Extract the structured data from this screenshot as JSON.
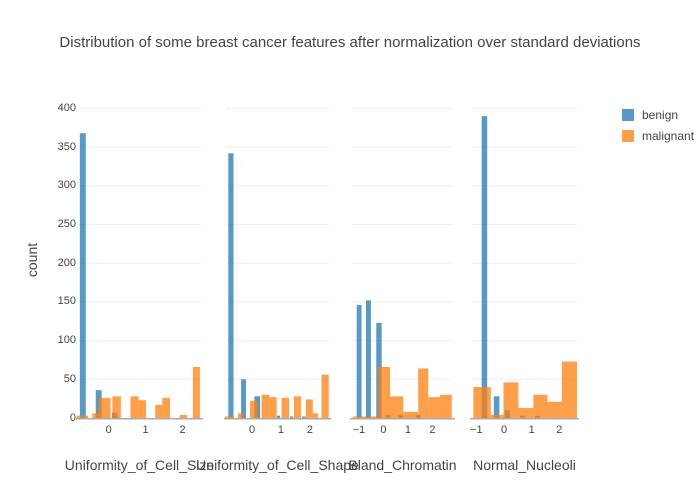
{
  "title": "Distribution of some breast cancer features after normalization over standard deviations",
  "chart_data": {
    "type": "bar",
    "subtype": "overlaid-histograms",
    "title": "Distribution of some breast cancer features after normalization over standard deviations",
    "ylabel": "count",
    "xlabel": "",
    "ylim": [
      0,
      400
    ],
    "y_ticks": [
      0,
      50,
      100,
      150,
      200,
      250,
      300,
      350,
      400
    ],
    "grid": true,
    "legend_position": "top-right",
    "bar_opacity": 0.75,
    "colors": {
      "benign": "#1f77b4",
      "malignant": "#ff7f0e",
      "gridline": "#eeeeee",
      "axis_line": "#aaaaaa",
      "text": "#444444"
    },
    "legend": [
      {
        "label": "benign",
        "color": "#1f77b4"
      },
      {
        "label": "malignant",
        "color": "#ff7f0e"
      }
    ],
    "series_note": "bars are [x_start, x_end, count] in standard-deviation units",
    "subplots": [
      {
        "feature": "Uniformity_of_Cell_Size",
        "xlim": [
          -0.83,
          2.5
        ],
        "x_ticks": [
          0,
          1,
          2
        ],
        "x_tick_labels": [
          "0",
          "1",
          "2"
        ],
        "series": {
          "benign": [
            [
              -0.78,
              -0.62,
              368
            ],
            [
              -0.35,
              -0.19,
              36
            ],
            [
              0.09,
              0.24,
              7
            ]
          ],
          "malignant": [
            [
              -0.87,
              -0.56,
              3
            ],
            [
              -0.44,
              -0.2,
              6
            ],
            [
              -0.27,
              0.05,
              26
            ],
            [
              0.1,
              0.33,
              28
            ],
            [
              0.59,
              0.81,
              28
            ],
            [
              0.81,
              1.01,
              23
            ],
            [
              1.26,
              1.45,
              17
            ],
            [
              1.45,
              1.66,
              26
            ],
            [
              1.92,
              2.12,
              4
            ],
            [
              2.28,
              2.47,
              66
            ]
          ]
        }
      },
      {
        "feature": "Uniformity_of_Cell_Shape",
        "xlim": [
          -0.9,
          2.66
        ],
        "x_ticks": [
          0,
          1,
          2
        ],
        "x_tick_labels": [
          "0",
          "1",
          "2"
        ],
        "series": {
          "benign": [
            [
              -0.82,
              -0.64,
              342
            ],
            [
              -0.38,
              -0.21,
              50
            ],
            [
              0.08,
              0.28,
              28
            ],
            [
              0.86,
              0.97,
              3
            ],
            [
              1.31,
              1.42,
              2
            ],
            [
              1.73,
              1.85,
              2
            ]
          ],
          "malignant": [
            [
              -0.93,
              -0.62,
              2
            ],
            [
              -0.49,
              -0.29,
              6
            ],
            [
              -0.07,
              0.2,
              22
            ],
            [
              0.33,
              0.6,
              30
            ],
            [
              0.6,
              0.85,
              27
            ],
            [
              1.02,
              1.28,
              26
            ],
            [
              1.45,
              1.69,
              28
            ],
            [
              1.86,
              2.1,
              24
            ],
            [
              2.1,
              2.28,
              6
            ],
            [
              2.4,
              2.65,
              56
            ]
          ]
        }
      },
      {
        "feature": "Bland_Chromatin",
        "xlim": [
          -1.28,
          2.84
        ],
        "x_ticks": [
          -1,
          0,
          1,
          2
        ],
        "x_tick_labels": [
          "−1",
          "0",
          "1",
          "2"
        ],
        "series": {
          "benign": [
            [
              -1.09,
              -0.89,
              146
            ],
            [
              -0.71,
              -0.51,
              152
            ],
            [
              -0.29,
              -0.07,
              123
            ],
            [
              0.09,
              0.28,
              4
            ],
            [
              0.61,
              0.81,
              4
            ],
            [
              1.32,
              1.51,
              4
            ]
          ],
          "malignant": [
            [
              -1.24,
              -0.22,
              2
            ],
            [
              -0.21,
              0.27,
              66
            ],
            [
              0.27,
              0.81,
              28
            ],
            [
              0.81,
              1.42,
              8
            ],
            [
              1.42,
              1.83,
              64
            ],
            [
              1.83,
              2.31,
              27
            ],
            [
              2.31,
              2.79,
              30
            ]
          ]
        }
      },
      {
        "feature": "Normal_Nucleoli",
        "xlim": [
          -1.16,
          2.64
        ],
        "x_ticks": [
          -1,
          0,
          1,
          2
        ],
        "x_tick_labels": [
          "−1",
          "0",
          "1",
          "2"
        ],
        "series": {
          "benign": [
            [
              -0.81,
              -0.61,
              390
            ],
            [
              -0.37,
              -0.17,
              28
            ],
            [
              0.02,
              0.22,
              10
            ],
            [
              0.58,
              0.76,
              3
            ],
            [
              1.12,
              1.3,
              3
            ]
          ],
          "malignant": [
            [
              -1.11,
              -0.48,
              40
            ],
            [
              -0.48,
              -0.02,
              4
            ],
            [
              -0.02,
              0.52,
              46
            ],
            [
              0.52,
              1.06,
              13
            ],
            [
              1.06,
              1.57,
              30
            ],
            [
              1.57,
              2.09,
              21
            ],
            [
              2.09,
              2.64,
              73
            ]
          ]
        }
      }
    ]
  }
}
